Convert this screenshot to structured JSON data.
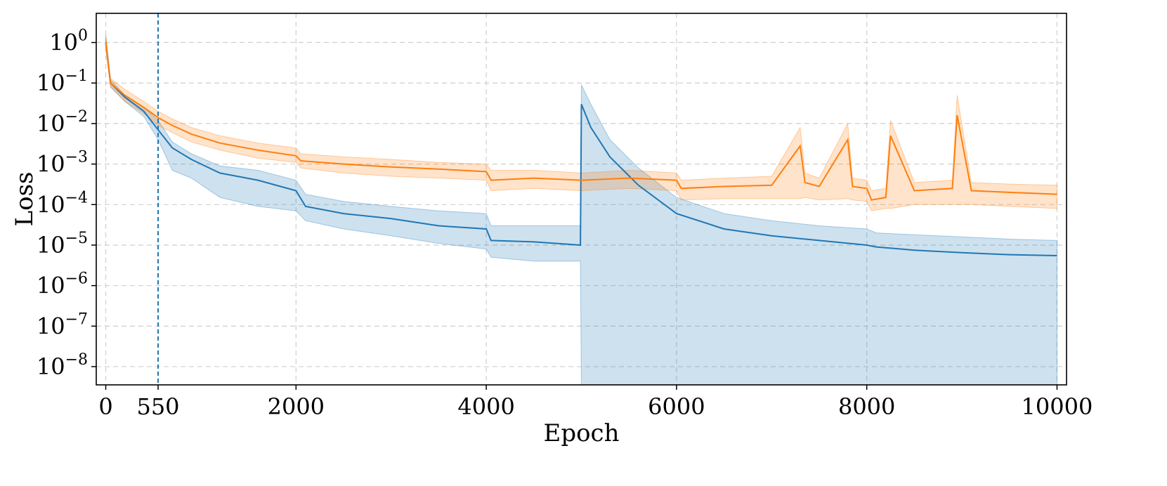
{
  "chart_data": {
    "type": "line",
    "xlabel": "Epoch",
    "ylabel": "Loss",
    "xlim": [
      -100,
      10100
    ],
    "ylim_log10": [
      -8.45,
      0.72
    ],
    "yscale": "log",
    "grid": true,
    "legend": "none",
    "x_ticks": [
      0,
      550,
      2000,
      4000,
      6000,
      8000,
      10000
    ],
    "x_tick_labels": [
      "0",
      "550",
      "2000",
      "4000",
      "6000",
      "8000",
      "10000"
    ],
    "y_ticks": [
      1,
      0.1,
      0.01,
      0.001,
      0.0001,
      1e-05,
      1e-06,
      1e-07,
      1e-08
    ],
    "y_tick_labels": [
      {
        "base": "10",
        "exp": "0"
      },
      {
        "base": "10",
        "exp": "−1"
      },
      {
        "base": "10",
        "exp": "−2"
      },
      {
        "base": "10",
        "exp": "−3"
      },
      {
        "base": "10",
        "exp": "−4"
      },
      {
        "base": "10",
        "exp": "−5"
      },
      {
        "base": "10",
        "exp": "−6"
      },
      {
        "base": "10",
        "exp": "−7"
      },
      {
        "base": "10",
        "exp": "−8"
      }
    ],
    "vline": {
      "x": 550,
      "color": "#1f77b4",
      "style": "dashed"
    },
    "series": [
      {
        "color": "#1f77b4",
        "band_color": "#1f77b4",
        "x": [
          0,
          50,
          200,
          400,
          550,
          700,
          900,
          1200,
          1600,
          2000,
          2100,
          2500,
          3000,
          3500,
          4000,
          4050,
          4500,
          4990,
          5000,
          5100,
          5300,
          5600,
          6000,
          6500,
          7000,
          7500,
          8000,
          8100,
          8500,
          9000,
          9500,
          10000
        ],
        "values": [
          1.0,
          0.1,
          0.045,
          0.02,
          0.007,
          0.0025,
          0.0013,
          0.0006,
          0.0004,
          0.00022,
          9e-05,
          6e-05,
          4.5e-05,
          3e-05,
          2.5e-05,
          1.3e-05,
          1.2e-05,
          1e-05,
          0.03,
          0.008,
          0.0015,
          0.0003,
          6e-05,
          2.5e-05,
          1.7e-05,
          1.3e-05,
          1e-05,
          9e-06,
          7.5e-06,
          6.5e-06,
          5.8e-06,
          5.5e-06
        ],
        "band_upper": [
          1.5,
          0.12,
          0.05,
          0.025,
          0.012,
          0.0035,
          0.0018,
          0.0009,
          0.0007,
          0.0004,
          0.00018,
          0.00012,
          9e-05,
          7e-05,
          6e-05,
          3e-05,
          3e-05,
          3e-05,
          0.09,
          0.03,
          0.004,
          0.0008,
          0.00015,
          6e-05,
          4e-05,
          3e-05,
          2.5e-05,
          2e-05,
          1.8e-05,
          1.6e-05,
          1.4e-05,
          1.3e-05
        ],
        "band_lower": [
          0.8,
          0.08,
          0.035,
          0.015,
          0.004,
          0.0007,
          0.00045,
          0.00015,
          9e-05,
          7e-05,
          4e-05,
          2.5e-05,
          1.7e-05,
          1.1e-05,
          8e-06,
          5e-06,
          4e-06,
          4e-06,
          1e-11,
          1e-11,
          1e-11,
          1e-11,
          1e-11,
          1e-11,
          1e-11,
          1e-11,
          1e-11,
          1e-11,
          1e-11,
          1e-11,
          1e-11,
          1e-11
        ],
        "spikes": [
          {
            "x": 7300,
            "value": 2.5e-05
          },
          {
            "x": 7800,
            "value": 2.5e-05
          }
        ]
      },
      {
        "color": "#ff7f0e",
        "band_color": "#ff7f0e",
        "x": [
          0,
          50,
          200,
          400,
          550,
          700,
          900,
          1200,
          1600,
          2000,
          2050,
          2500,
          3000,
          3500,
          4000,
          4050,
          4500,
          5000,
          5500,
          6000,
          6050,
          6500,
          7000,
          7300,
          7350,
          7500,
          7800,
          7850,
          8000,
          8050,
          8200,
          8250,
          8500,
          8900,
          8950,
          9100,
          9500,
          10000
        ],
        "values": [
          1.0,
          0.1,
          0.05,
          0.025,
          0.014,
          0.009,
          0.0055,
          0.0033,
          0.0022,
          0.0016,
          0.0012,
          0.001,
          0.00085,
          0.00075,
          0.00065,
          0.0004,
          0.00045,
          0.0004,
          0.00045,
          0.0004,
          0.00025,
          0.00028,
          0.0003,
          0.0028,
          0.00035,
          0.00028,
          0.004,
          0.00028,
          0.00025,
          0.00013,
          0.00015,
          0.005,
          0.00022,
          0.00025,
          0.016,
          0.00022,
          0.0002,
          0.00018
        ],
        "band_upper": [
          1.6,
          0.13,
          0.07,
          0.035,
          0.02,
          0.013,
          0.008,
          0.005,
          0.0033,
          0.0025,
          0.0018,
          0.0015,
          0.0013,
          0.0011,
          0.001,
          0.0007,
          0.0007,
          0.0006,
          0.0007,
          0.0006,
          0.0004,
          0.00045,
          0.0005,
          0.008,
          0.0006,
          0.00045,
          0.01,
          0.00045,
          0.0004,
          0.00022,
          0.00025,
          0.012,
          0.00035,
          0.0004,
          0.05,
          0.00035,
          0.00032,
          0.0003
        ],
        "band_lower": [
          0.7,
          0.08,
          0.035,
          0.018,
          0.009,
          0.006,
          0.0035,
          0.0022,
          0.0014,
          0.0011,
          0.0008,
          0.0006,
          0.0005,
          0.00045,
          0.0004,
          0.00022,
          0.00025,
          0.00022,
          0.00025,
          0.00022,
          0.00013,
          0.00014,
          0.00014,
          0.00014,
          0.00015,
          0.00013,
          0.00014,
          0.00013,
          0.00012,
          7e-05,
          8e-05,
          8e-05,
          0.0001,
          0.0001,
          0.0001,
          0.0001,
          9e-05,
          8e-05
        ]
      }
    ]
  }
}
